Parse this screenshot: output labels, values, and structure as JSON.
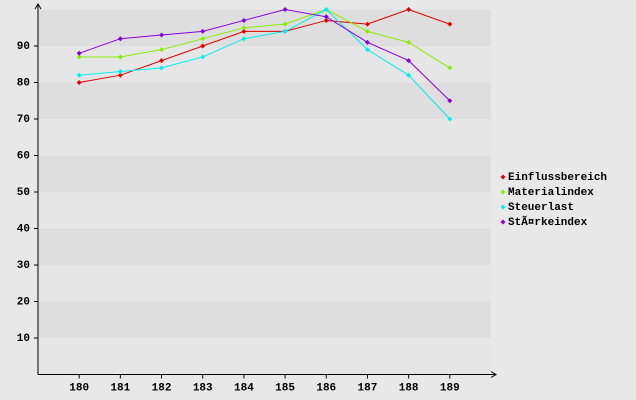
{
  "chart_data": {
    "type": "line",
    "x": [
      180,
      181,
      182,
      183,
      184,
      185,
      186,
      187,
      188,
      189
    ],
    "xlim": [
      179,
      190
    ],
    "xticks": [
      180,
      181,
      182,
      183,
      184,
      185,
      186,
      187,
      188,
      189
    ],
    "ylim": [
      0,
      100
    ],
    "yticks": [
      10,
      20,
      30,
      40,
      50,
      60,
      70,
      80,
      90
    ],
    "series": [
      {
        "name": "Einflussbereich",
        "color": "#e00000",
        "values": [
          80,
          82,
          86,
          90,
          94,
          94,
          97,
          96,
          100,
          96
        ]
      },
      {
        "name": "Materialindex",
        "color": "#88ee00",
        "values": [
          87,
          87,
          89,
          92,
          95,
          96,
          100,
          94,
          91,
          84
        ]
      },
      {
        "name": "Steuerlast",
        "color": "#00eeee",
        "values": [
          82,
          83,
          84,
          87,
          92,
          94,
          100,
          89,
          82,
          70
        ]
      },
      {
        "name": "StÃ¤rkeindex",
        "color": "#8800dd",
        "values": [
          88,
          92,
          93,
          94,
          97,
          100,
          98,
          91,
          86,
          75
        ]
      }
    ],
    "legend": "right"
  }
}
